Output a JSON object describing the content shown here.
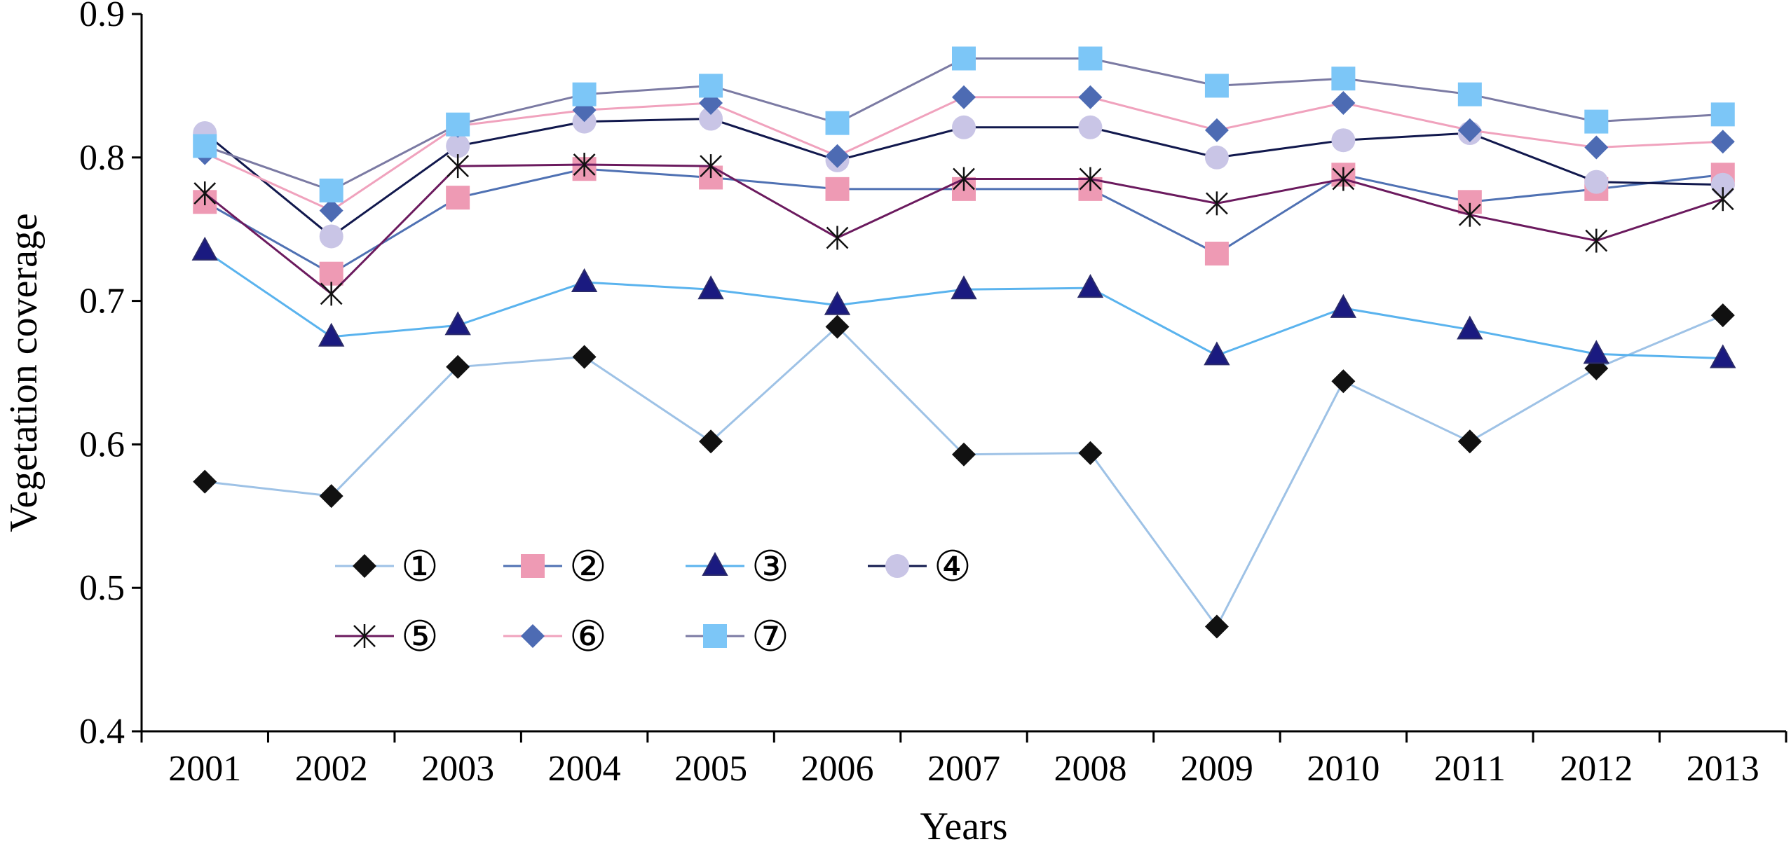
{
  "chart_data": {
    "type": "line",
    "title": "",
    "xlabel": "Years",
    "ylabel": "Vegetation coverage",
    "x": [
      "2001",
      "2002",
      "2003",
      "2004",
      "2005",
      "2006",
      "2007",
      "2008",
      "2009",
      "2010",
      "2011",
      "2012",
      "2013"
    ],
    "ylim": [
      0.4,
      0.9
    ],
    "yticks": [
      "0.4",
      "0.5",
      "0.6",
      "0.7",
      "0.8",
      "0.9"
    ],
    "grid": false,
    "legend_position": "lower-left",
    "series": [
      {
        "name": "①",
        "line_color": "#9ec2e6",
        "marker": "diamond",
        "marker_color": "#111111",
        "values": [
          0.574,
          0.564,
          0.654,
          0.661,
          0.602,
          0.682,
          0.593,
          0.594,
          0.473,
          0.644,
          0.602,
          0.653,
          0.69
        ]
      },
      {
        "name": "②",
        "line_color": "#4f71b3",
        "marker": "square",
        "marker_color": "#ee9ab4",
        "values": [
          0.769,
          0.719,
          0.772,
          0.792,
          0.786,
          0.778,
          0.778,
          0.778,
          0.733,
          0.788,
          0.769,
          0.778,
          0.788
        ]
      },
      {
        "name": "③",
        "line_color": "#5ab3ee",
        "marker": "triangle",
        "marker_color": "#1a1a80",
        "values": [
          0.735,
          0.675,
          0.683,
          0.713,
          0.708,
          0.697,
          0.708,
          0.709,
          0.662,
          0.695,
          0.68,
          0.663,
          0.66
        ]
      },
      {
        "name": "④",
        "line_color": "#11184d",
        "marker": "circle",
        "marker_color": "#c9c5e6",
        "values": [
          0.817,
          0.745,
          0.808,
          0.825,
          0.827,
          0.798,
          0.821,
          0.821,
          0.8,
          0.812,
          0.817,
          0.783,
          0.781
        ]
      },
      {
        "name": "⑤",
        "line_color": "#6b1a5e",
        "marker": "asterisk",
        "marker_color": "#111111",
        "values": [
          0.775,
          0.705,
          0.794,
          0.795,
          0.794,
          0.744,
          0.785,
          0.785,
          0.768,
          0.785,
          0.76,
          0.742,
          0.771
        ]
      },
      {
        "name": "⑥",
        "line_color": "#f0a2bd",
        "marker": "diamond",
        "marker_color": "#4d6bb3",
        "values": [
          0.803,
          0.763,
          0.822,
          0.833,
          0.838,
          0.801,
          0.842,
          0.842,
          0.819,
          0.838,
          0.819,
          0.807,
          0.811
        ]
      },
      {
        "name": "⑦",
        "line_color": "#7b7aa3",
        "marker": "square",
        "marker_color": "#7cc6f7",
        "values": [
          0.808,
          0.777,
          0.823,
          0.844,
          0.85,
          0.824,
          0.869,
          0.869,
          0.85,
          0.855,
          0.844,
          0.825,
          0.83
        ]
      }
    ]
  }
}
